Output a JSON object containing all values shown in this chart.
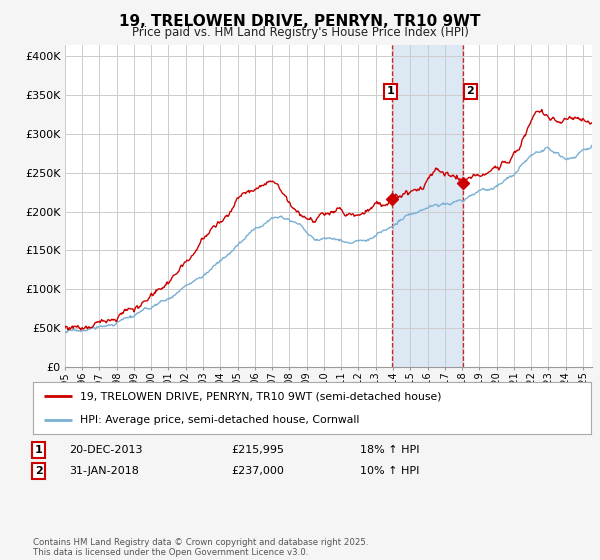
{
  "title": "19, TRELOWEN DRIVE, PENRYN, TR10 9WT",
  "subtitle": "Price paid vs. HM Land Registry's House Price Index (HPI)",
  "ylabel_ticks": [
    "£0",
    "£50K",
    "£100K",
    "£150K",
    "£200K",
    "£250K",
    "£300K",
    "£350K",
    "£400K"
  ],
  "ytick_values": [
    0,
    50000,
    100000,
    150000,
    200000,
    250000,
    300000,
    350000,
    400000
  ],
  "ylim": [
    0,
    415000
  ],
  "xlim_start": 1995.0,
  "xlim_end": 2025.5,
  "xticks": [
    1995,
    1996,
    1997,
    1998,
    1999,
    2000,
    2001,
    2002,
    2003,
    2004,
    2005,
    2006,
    2007,
    2008,
    2009,
    2010,
    2011,
    2012,
    2013,
    2014,
    2015,
    2016,
    2017,
    2018,
    2019,
    2020,
    2021,
    2022,
    2023,
    2024,
    2025
  ],
  "marker1_date": 2013.97,
  "marker1_value": 215995,
  "marker2_date": 2018.08,
  "marker2_value": 237000,
  "marker1_label": "1",
  "marker2_label": "2",
  "shaded_start": 2013.97,
  "shaded_end": 2018.08,
  "legend_line1": "19, TRELOWEN DRIVE, PENRYN, TR10 9WT (semi-detached house)",
  "legend_line2": "HPI: Average price, semi-detached house, Cornwall",
  "table_row1": [
    "1",
    "20-DEC-2013",
    "£215,995",
    "18% ↑ HPI"
  ],
  "table_row2": [
    "2",
    "31-JAN-2018",
    "£237,000",
    "10% ↑ HPI"
  ],
  "footer": "Contains HM Land Registry data © Crown copyright and database right 2025.\nThis data is licensed under the Open Government Licence v3.0.",
  "bg_color": "#f5f5f5",
  "plot_bg_color": "#ffffff",
  "grid_color": "#cccccc",
  "red_line_color": "#cc0000",
  "blue_line_color": "#7ab0d4",
  "shade_color": "#dce9f5",
  "vline_color": "#cc0000",
  "marker_box_color": "#cc0000"
}
